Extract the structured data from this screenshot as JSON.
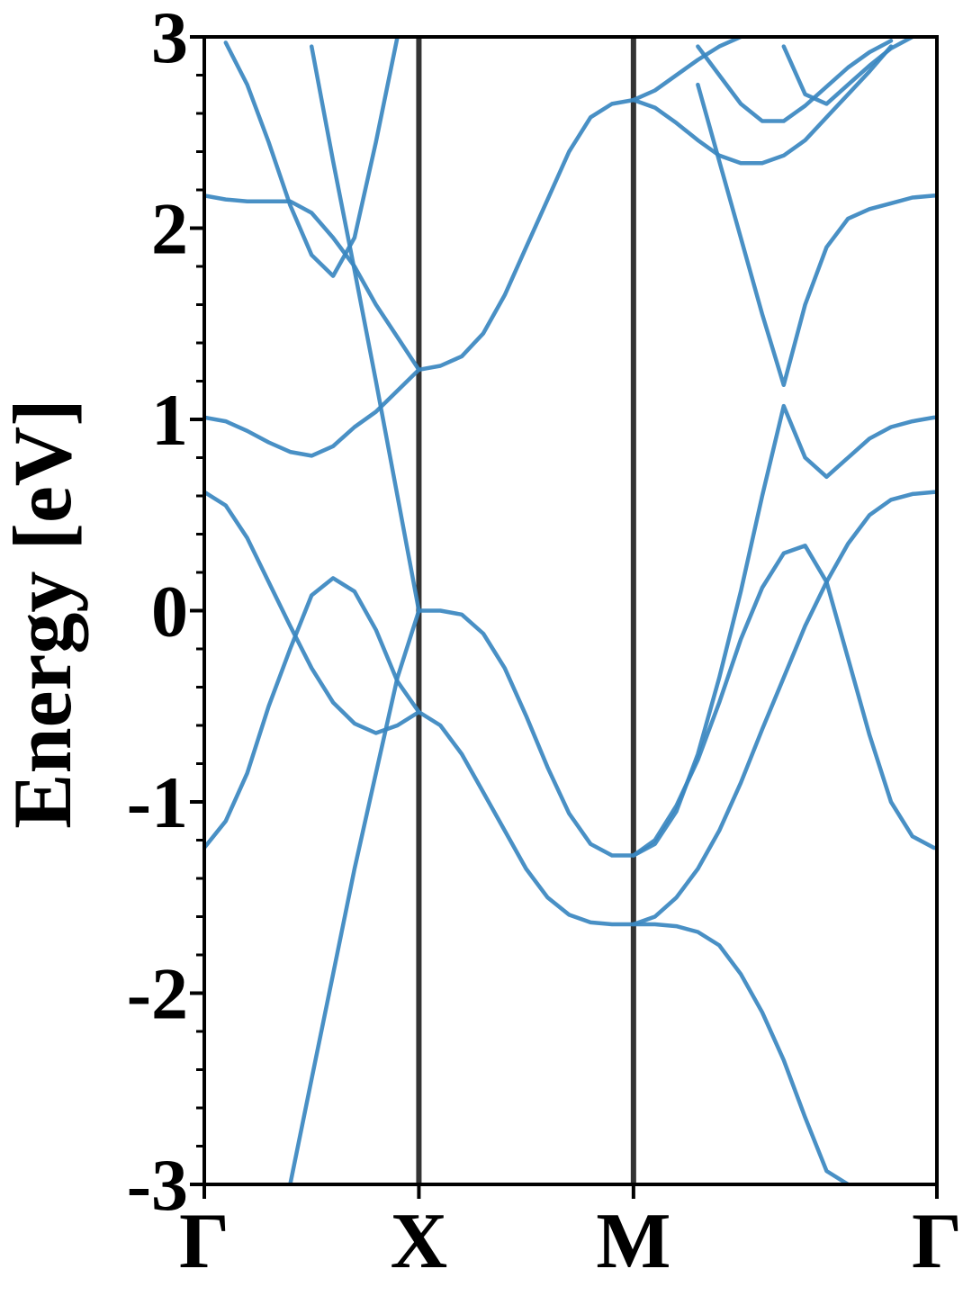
{
  "chart_data": {
    "type": "line",
    "ylabel": "Energy [eV]",
    "x": [
      0,
      0.1,
      0.2,
      0.3,
      0.4,
      0.5,
      0.6,
      0.7,
      0.8,
      0.9,
      1.0,
      1.1,
      1.2,
      1.3,
      1.4,
      1.5,
      1.6,
      1.7,
      1.8,
      1.9,
      2.0,
      2.1,
      2.2,
      2.3,
      2.4,
      2.5,
      2.6,
      2.7,
      2.8,
      2.9,
      3.0,
      3.1,
      3.2,
      3.3,
      3.4,
      3.414
    ],
    "xlim": [
      0,
      3.414
    ],
    "xticks": [
      {
        "value": 0,
        "label": "Γ"
      },
      {
        "value": 1,
        "label": "X"
      },
      {
        "value": 2,
        "label": "M"
      },
      {
        "value": 3.414,
        "label": "Γ"
      }
    ],
    "xgrid": true,
    "ylim": [
      -3,
      3
    ],
    "yticks": [
      -3,
      -2,
      -1,
      0,
      1,
      2,
      3
    ],
    "yminorticks": [
      -2.8,
      -2.6,
      -2.4,
      -2.2,
      -1.8,
      -1.6,
      -1.4,
      -1.2,
      -0.8,
      -0.6,
      -0.4,
      -0.2,
      0.2,
      0.4,
      0.6,
      0.8,
      1.2,
      1.4,
      1.6,
      1.8,
      2.2,
      2.4,
      2.6,
      2.8
    ],
    "series": [
      {
        "color": "#3a87c0",
        "values": [
          -1.24,
          -1.1,
          -0.85,
          -0.5,
          -0.2,
          0.08,
          0.17,
          0.1,
          -0.1,
          -0.37,
          -0.53,
          null,
          null,
          null,
          null,
          null,
          null,
          null,
          null,
          null,
          null,
          null,
          null,
          null,
          null,
          null,
          null,
          null,
          null,
          null,
          null,
          null,
          null,
          null,
          null,
          null
        ]
      },
      {
        "color": "#3a87c0",
        "values": [
          0.62,
          0.55,
          0.38,
          0.15,
          -0.08,
          -0.3,
          -0.48,
          -0.59,
          -0.64,
          -0.6,
          -0.53,
          -0.6,
          -0.75,
          -0.95,
          -1.15,
          -1.35,
          -1.5,
          -1.59,
          -1.63,
          -1.64,
          -1.64,
          -1.6,
          -1.5,
          -1.35,
          -1.15,
          -0.9,
          -0.62,
          -0.35,
          -0.08,
          0.15,
          0.35,
          0.5,
          0.58,
          0.61,
          0.62,
          0.62
        ]
      },
      {
        "color": "#3a87c0",
        "values": [
          null,
          null,
          null,
          null,
          -3,
          -2.45,
          -1.9,
          -1.35,
          -0.85,
          -0.35,
          0,
          0.0,
          -0.02,
          -0.12,
          -0.3,
          -0.55,
          -0.82,
          -1.06,
          -1.22,
          -1.28,
          -1.28,
          -1.2,
          -1.02,
          -0.78,
          -0.48,
          -0.15,
          0.12,
          0.3,
          0.34,
          0.15,
          -0.25,
          -0.65,
          -1.0,
          -1.18,
          -1.24,
          -1.24
        ]
      },
      {
        "color": "#3a87c0",
        "values": [
          null,
          null,
          null,
          null,
          null,
          2.95,
          2.35,
          1.78,
          1.2,
          0.6,
          0,
          null,
          null,
          null,
          null,
          null,
          null,
          null,
          null,
          null,
          -1.28,
          -1.22,
          -1.05,
          -0.75,
          -0.35,
          0.1,
          0.6,
          1.07,
          0.8,
          0.7,
          0.8,
          0.9,
          0.96,
          0.99,
          1.01,
          1.01
        ]
      },
      {
        "color": "#3a87c0",
        "values": [
          1.01,
          0.99,
          0.94,
          0.88,
          0.83,
          0.81,
          0.86,
          0.96,
          1.04,
          1.15,
          1.26,
          1.28,
          1.33,
          1.45,
          1.65,
          1.9,
          2.15,
          2.4,
          2.58,
          2.65,
          2.67,
          2.72,
          2.8,
          2.88,
          2.95,
          3.0,
          null,
          null,
          null,
          null,
          null,
          null,
          null,
          null,
          null,
          null
        ]
      },
      {
        "color": "#3a87c0",
        "values": [
          2.17,
          2.15,
          2.14,
          2.14,
          2.14,
          2.08,
          1.95,
          1.8,
          1.6,
          1.43,
          1.26,
          null,
          null,
          null,
          null,
          null,
          null,
          null,
          null,
          null,
          2.67,
          2.63,
          2.55,
          2.46,
          2.38,
          2.34,
          2.34,
          2.38,
          2.46,
          2.58,
          2.7,
          2.82,
          2.95,
          null,
          null,
          null
        ]
      },
      {
        "color": "#3a87c0",
        "values": [
          null,
          2.97,
          2.75,
          2.45,
          2.12,
          1.86,
          1.75,
          1.95,
          2.45,
          3.0,
          null,
          null,
          null,
          null,
          null,
          null,
          null,
          null,
          null,
          null,
          null,
          null,
          null,
          null,
          null,
          null,
          null,
          null,
          null,
          null,
          null,
          null,
          null,
          null,
          null,
          null
        ]
      },
      {
        "color": "#3a87c0",
        "values": [
          null,
          null,
          null,
          null,
          null,
          null,
          null,
          null,
          null,
          null,
          null,
          null,
          null,
          null,
          null,
          null,
          null,
          null,
          null,
          null,
          -1.64,
          -1.64,
          -1.65,
          -1.68,
          -1.75,
          -1.9,
          -2.1,
          -2.35,
          -2.65,
          -2.93,
          -3.0,
          null,
          null,
          null,
          null,
          null
        ]
      },
      {
        "color": "#3a87c0",
        "values": [
          null,
          null,
          null,
          null,
          null,
          null,
          null,
          null,
          null,
          null,
          null,
          null,
          null,
          null,
          null,
          null,
          null,
          null,
          null,
          null,
          null,
          null,
          null,
          2.75,
          2.35,
          1.95,
          1.55,
          1.18,
          1.6,
          1.9,
          2.05,
          2.1,
          2.13,
          2.16,
          2.17,
          2.17
        ]
      },
      {
        "color": "#3a87c0",
        "values": [
          null,
          null,
          null,
          null,
          null,
          null,
          null,
          null,
          null,
          null,
          null,
          null,
          null,
          null,
          null,
          null,
          null,
          null,
          null,
          null,
          null,
          null,
          null,
          2.95,
          2.8,
          2.65,
          2.56,
          2.56,
          2.64,
          2.74,
          2.84,
          2.92,
          2.98,
          null,
          null,
          null
        ]
      },
      {
        "color": "#3a87c0",
        "values": [
          null,
          null,
          null,
          null,
          null,
          null,
          null,
          null,
          null,
          null,
          null,
          null,
          null,
          null,
          null,
          null,
          null,
          null,
          null,
          null,
          null,
          null,
          null,
          null,
          null,
          null,
          null,
          2.95,
          2.7,
          2.65,
          2.75,
          2.85,
          2.94,
          3.0,
          null,
          null
        ]
      }
    ]
  }
}
